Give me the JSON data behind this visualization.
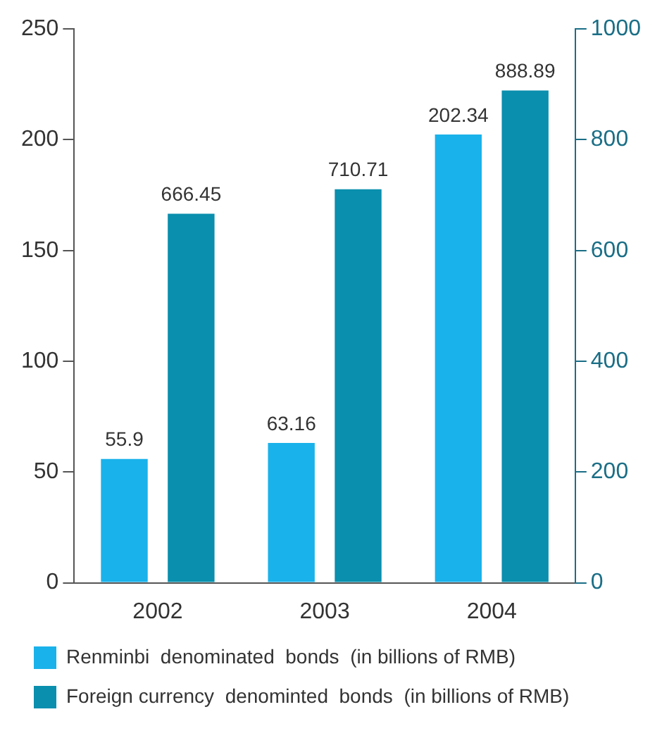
{
  "chart_data": {
    "type": "bar",
    "categories": [
      "2002",
      "2003",
      "2004"
    ],
    "series": [
      {
        "name": "Renminbi  denominated  bonds  (in billions of RMB)",
        "color": "#1ab2ea",
        "values": [
          55.9,
          63.16,
          202.34
        ]
      },
      {
        "name": "Foreign currency  denominted  bonds  (in billions of RMB)",
        "color": "#0a8fae",
        "values": [
          666.45,
          710.71,
          888.89
        ],
        "axis": "y2"
      }
    ],
    "ylim": [
      0,
      250
    ],
    "yticks": [
      0,
      50,
      100,
      150,
      200,
      250
    ],
    "y2lim": [
      0,
      1000
    ],
    "y2ticks": [
      0,
      200,
      400,
      600,
      800,
      1000
    ],
    "data_labels": true,
    "grid": false,
    "legend": "bottom"
  }
}
